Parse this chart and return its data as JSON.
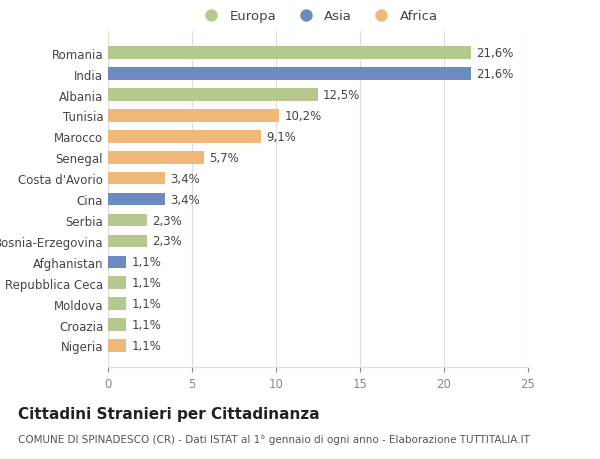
{
  "countries": [
    "Romania",
    "India",
    "Albania",
    "Tunisia",
    "Marocco",
    "Senegal",
    "Costa d'Avorio",
    "Cina",
    "Serbia",
    "Bosnia-Erzegovina",
    "Afghanistan",
    "Repubblica Ceca",
    "Moldova",
    "Croazia",
    "Nigeria"
  ],
  "values": [
    21.6,
    21.6,
    12.5,
    10.2,
    9.1,
    5.7,
    3.4,
    3.4,
    2.3,
    2.3,
    1.1,
    1.1,
    1.1,
    1.1,
    1.1
  ],
  "labels": [
    "21,6%",
    "21,6%",
    "12,5%",
    "10,2%",
    "9,1%",
    "5,7%",
    "3,4%",
    "3,4%",
    "2,3%",
    "2,3%",
    "1,1%",
    "1,1%",
    "1,1%",
    "1,1%",
    "1,1%"
  ],
  "continents": [
    "Europa",
    "Asia",
    "Europa",
    "Africa",
    "Africa",
    "Africa",
    "Africa",
    "Asia",
    "Europa",
    "Europa",
    "Asia",
    "Europa",
    "Europa",
    "Europa",
    "Africa"
  ],
  "colors": {
    "Europa": "#b5c98e",
    "Asia": "#6b8cbf",
    "Africa": "#f0b97a"
  },
  "xlim": [
    0,
    25
  ],
  "xticks": [
    0,
    5,
    10,
    15,
    20,
    25
  ],
  "title": "Cittadini Stranieri per Cittadinanza",
  "subtitle": "COMUNE DI SPINADESCO (CR) - Dati ISTAT al 1° gennaio di ogni anno - Elaborazione TUTTITALIA.IT",
  "background_color": "#ffffff",
  "grid_color": "#dddddd",
  "bar_height": 0.6,
  "label_fontsize": 8.5,
  "tick_fontsize": 8.5,
  "title_fontsize": 11,
  "subtitle_fontsize": 7.5
}
